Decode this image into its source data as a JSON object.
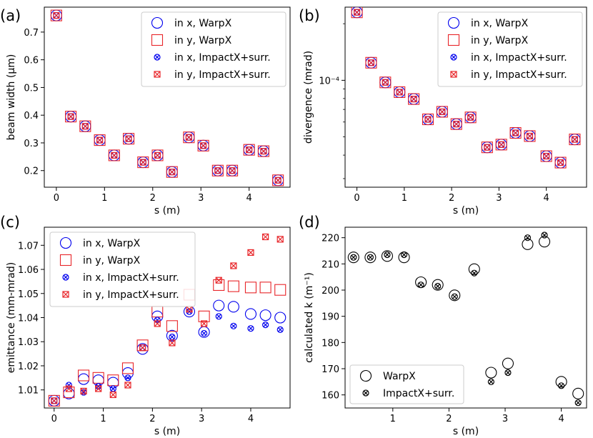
{
  "chart_data": [
    {
      "type": "scatter",
      "panel_label": "(a)",
      "xlabel": "s (m)",
      "ylabel": "beam width (μm)",
      "xlim": [
        -0.25,
        4.85
      ],
      "ylim": [
        0.14,
        0.79
      ],
      "xticks": [
        0,
        1,
        2,
        3,
        4
      ],
      "xtick_labels": [
        "0",
        "1",
        "2",
        "3",
        "4"
      ],
      "yticks": [
        0.2,
        0.3,
        0.4,
        0.5,
        0.6,
        0.7
      ],
      "ytick_labels": [
        "0.2",
        "0.3",
        "0.4",
        "0.5",
        "0.6",
        "0.7"
      ],
      "legend": [
        "in x, WarpX",
        "in y, WarpX",
        "in x, ImpactX+surr.",
        "in y, ImpactX+surr."
      ],
      "legend_position": "top-right",
      "x": [
        0,
        0.3,
        0.6,
        0.9,
        1.2,
        1.5,
        1.8,
        2.1,
        2.4,
        2.75,
        3.05,
        3.35,
        3.65,
        4.0,
        4.3,
        4.6
      ],
      "series": [
        {
          "name": "in x, WarpX",
          "values": [
            0.76,
            0.395,
            0.36,
            0.31,
            0.255,
            0.315,
            0.23,
            0.255,
            0.195,
            0.32,
            0.29,
            0.2,
            0.2,
            0.275,
            0.27,
            0.165
          ]
        },
        {
          "name": "in y, WarpX",
          "values": [
            0.76,
            0.395,
            0.36,
            0.31,
            0.255,
            0.315,
            0.23,
            0.255,
            0.195,
            0.32,
            0.29,
            0.2,
            0.2,
            0.275,
            0.27,
            0.165
          ]
        },
        {
          "name": "in x, ImpactX+surr.",
          "values": [
            0.76,
            0.395,
            0.36,
            0.31,
            0.255,
            0.315,
            0.23,
            0.255,
            0.195,
            0.32,
            0.29,
            0.2,
            0.2,
            0.275,
            0.27,
            0.165
          ]
        },
        {
          "name": "in y, ImpactX+surr.",
          "values": [
            0.76,
            0.395,
            0.36,
            0.31,
            0.255,
            0.315,
            0.23,
            0.255,
            0.195,
            0.32,
            0.29,
            0.2,
            0.2,
            0.275,
            0.27,
            0.165
          ]
        }
      ]
    },
    {
      "type": "scatter",
      "panel_label": "(b)",
      "xlabel": "s (m)",
      "ylabel": "divergence (mrad)",
      "yscale": "log",
      "xlim": [
        -0.25,
        4.85
      ],
      "ylim": [
        2.7e-05,
        0.000245
      ],
      "xticks": [
        0,
        1,
        2,
        3,
        4
      ],
      "xtick_labels": [
        "0",
        "1",
        "2",
        "3",
        "4"
      ],
      "yticks": [
        0.0001
      ],
      "ytick_labels": [
        "10⁻⁴"
      ],
      "minor_yticks": [
        3e-05,
        4e-05,
        5e-05,
        6e-05,
        7e-05,
        8e-05,
        9e-05,
        0.0002
      ],
      "legend": [
        "in x, WarpX",
        "in y, WarpX",
        "in x, ImpactX+surr.",
        "in y, ImpactX+surr."
      ],
      "legend_position": "top-right",
      "x": [
        0,
        0.3,
        0.6,
        0.9,
        1.2,
        1.5,
        1.8,
        2.1,
        2.4,
        2.75,
        3.05,
        3.35,
        3.65,
        4.0,
        4.3,
        4.6
      ],
      "series": [
        {
          "name": "in x, WarpX",
          "values": [
            0.00023,
            0.000124,
            9.75e-05,
            8.65e-05,
            7.95e-05,
            6.2e-05,
            6.8e-05,
            5.85e-05,
            6.35e-05,
            4.4e-05,
            4.55e-05,
            5.25e-05,
            5.05e-05,
            3.95e-05,
            3.65e-05,
            4.85e-05
          ]
        },
        {
          "name": "in y, WarpX",
          "values": [
            0.00023,
            0.000124,
            9.75e-05,
            8.65e-05,
            7.95e-05,
            6.2e-05,
            6.8e-05,
            5.85e-05,
            6.35e-05,
            4.4e-05,
            4.55e-05,
            5.25e-05,
            5.05e-05,
            3.95e-05,
            3.65e-05,
            4.85e-05
          ]
        },
        {
          "name": "in x, ImpactX+surr.",
          "values": [
            0.00023,
            0.000124,
            9.75e-05,
            8.65e-05,
            7.95e-05,
            6.2e-05,
            6.8e-05,
            5.85e-05,
            6.35e-05,
            4.4e-05,
            4.55e-05,
            5.25e-05,
            5.05e-05,
            3.95e-05,
            3.65e-05,
            4.85e-05
          ]
        },
        {
          "name": "in y, ImpactX+surr.",
          "values": [
            0.00023,
            0.000124,
            9.75e-05,
            8.65e-05,
            7.95e-05,
            6.2e-05,
            6.8e-05,
            5.85e-05,
            6.35e-05,
            4.4e-05,
            4.55e-05,
            5.25e-05,
            5.05e-05,
            3.95e-05,
            3.65e-05,
            4.85e-05
          ]
        }
      ]
    },
    {
      "type": "scatter",
      "panel_label": "(c)",
      "xlabel": "s (m)",
      "ylabel": "emittance (mm-mrad)",
      "xlim": [
        -0.2,
        4.8
      ],
      "ylim": [
        1.0025,
        1.0775
      ],
      "xticks": [
        0,
        1,
        2,
        3,
        4
      ],
      "xtick_labels": [
        "0",
        "1",
        "2",
        "3",
        "4"
      ],
      "yticks": [
        1.01,
        1.02,
        1.03,
        1.04,
        1.05,
        1.06,
        1.07
      ],
      "ytick_labels": [
        "1.01",
        "1.02",
        "1.03",
        "1.04",
        "1.05",
        "1.06",
        "1.07"
      ],
      "legend": [
        "in x, WarpX",
        "in y, WarpX",
        "in x, ImpactX+surr.",
        "in y, ImpactX+surr."
      ],
      "legend_position": "top-left",
      "x": [
        0,
        0.3,
        0.6,
        0.9,
        1.2,
        1.5,
        1.8,
        2.1,
        2.4,
        2.75,
        3.05,
        3.35,
        3.65,
        4.0,
        4.3,
        4.6
      ],
      "series": [
        {
          "name": "in x, WarpX",
          "values": [
            1.0055,
            1.0085,
            1.0145,
            1.014,
            1.013,
            1.017,
            1.027,
            1.0405,
            1.0325,
            1.0425,
            1.034,
            1.045,
            1.0445,
            1.0415,
            1.041,
            1.04
          ]
        },
        {
          "name": "in y, WarpX",
          "values": [
            1.0055,
            1.009,
            1.016,
            1.015,
            1.014,
            1.019,
            1.0285,
            1.0425,
            1.0365,
            1.0495,
            1.0405,
            1.0535,
            1.053,
            1.0525,
            1.0525,
            1.0515
          ]
        },
        {
          "name": "in x, ImpactX+surr.",
          "values": [
            1.0055,
            1.012,
            1.009,
            1.0115,
            1.0105,
            1.015,
            1.0275,
            1.039,
            1.032,
            1.0425,
            1.0335,
            1.0405,
            1.0365,
            1.0355,
            1.037,
            1.035
          ]
        },
        {
          "name": "in y, ImpactX+surr.",
          "values": [
            1.0055,
            1.0105,
            1.0095,
            1.0105,
            1.008,
            1.012,
            1.0275,
            1.0375,
            1.0295,
            1.0435,
            1.0375,
            1.0555,
            1.0615,
            1.067,
            1.0735,
            1.0725
          ]
        }
      ]
    },
    {
      "type": "scatter",
      "panel_label": "(d)",
      "xlabel": "s (m)",
      "ylabel": "calculated k (m⁻¹)",
      "xlim": [
        0.15,
        4.45
      ],
      "ylim": [
        155,
        224
      ],
      "xticks": [
        1,
        2,
        3,
        4
      ],
      "xtick_labels": [
        "1",
        "2",
        "3",
        "4"
      ],
      "yticks": [
        160,
        170,
        180,
        190,
        200,
        210,
        220
      ],
      "ytick_labels": [
        "160",
        "170",
        "180",
        "190",
        "200",
        "210",
        "220"
      ],
      "legend": [
        "WarpX",
        "ImpactX+surr."
      ],
      "legend_position": "bottom-left",
      "x": [
        0.3,
        0.6,
        0.9,
        1.2,
        1.5,
        1.8,
        2.1,
        2.45,
        2.75,
        3.05,
        3.4,
        3.7,
        4.0,
        4.3
      ],
      "series": [
        {
          "name": "WarpX",
          "values": [
            212.5,
            212.5,
            213,
            212.5,
            203,
            202,
            198,
            208,
            168.5,
            172,
            217.5,
            218.5,
            165,
            160.5
          ]
        },
        {
          "name": "ImpactX+surr.",
          "values": [
            212.5,
            212.5,
            213.5,
            213.5,
            202,
            201.5,
            197.5,
            206.5,
            165,
            168.5,
            220,
            221,
            163.5,
            157
          ]
        }
      ]
    }
  ],
  "colors": {
    "blue": "#0000ee",
    "red": "#e8262a",
    "black": "#000000"
  }
}
